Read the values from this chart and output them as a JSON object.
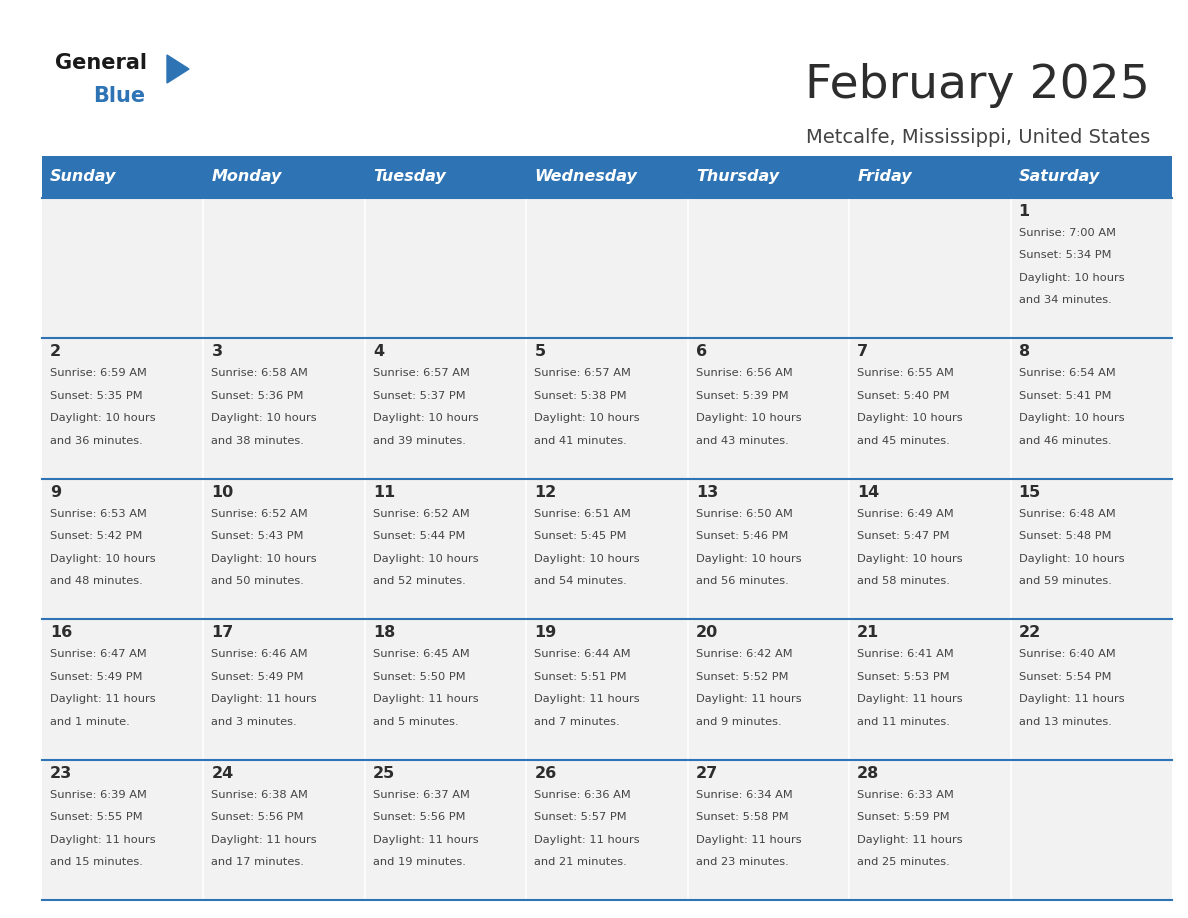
{
  "title": "February 2025",
  "subtitle": "Metcalfe, Mississippi, United States",
  "days_of_week": [
    "Sunday",
    "Monday",
    "Tuesday",
    "Wednesday",
    "Thursday",
    "Friday",
    "Saturday"
  ],
  "header_bg": "#2e74b5",
  "header_text": "#ffffff",
  "row_bg": "#f2f2f2",
  "cell_border_color": "#2e74b5",
  "title_color": "#2d2d2d",
  "subtitle_color": "#444444",
  "day_num_color": "#2d2d2d",
  "info_color": "#444444",
  "logo_general_color": "#1a1a1a",
  "logo_blue_color": "#2e74b5",
  "calendar": [
    [
      null,
      null,
      null,
      null,
      null,
      null,
      {
        "day": "1",
        "sunrise": "7:00 AM",
        "sunset": "5:34 PM",
        "daylight_h": "10 hours",
        "daylight_m": "and 34 minutes."
      }
    ],
    [
      {
        "day": "2",
        "sunrise": "6:59 AM",
        "sunset": "5:35 PM",
        "daylight_h": "10 hours",
        "daylight_m": "and 36 minutes."
      },
      {
        "day": "3",
        "sunrise": "6:58 AM",
        "sunset": "5:36 PM",
        "daylight_h": "10 hours",
        "daylight_m": "and 38 minutes."
      },
      {
        "day": "4",
        "sunrise": "6:57 AM",
        "sunset": "5:37 PM",
        "daylight_h": "10 hours",
        "daylight_m": "and 39 minutes."
      },
      {
        "day": "5",
        "sunrise": "6:57 AM",
        "sunset": "5:38 PM",
        "daylight_h": "10 hours",
        "daylight_m": "and 41 minutes."
      },
      {
        "day": "6",
        "sunrise": "6:56 AM",
        "sunset": "5:39 PM",
        "daylight_h": "10 hours",
        "daylight_m": "and 43 minutes."
      },
      {
        "day": "7",
        "sunrise": "6:55 AM",
        "sunset": "5:40 PM",
        "daylight_h": "10 hours",
        "daylight_m": "and 45 minutes."
      },
      {
        "day": "8",
        "sunrise": "6:54 AM",
        "sunset": "5:41 PM",
        "daylight_h": "10 hours",
        "daylight_m": "and 46 minutes."
      }
    ],
    [
      {
        "day": "9",
        "sunrise": "6:53 AM",
        "sunset": "5:42 PM",
        "daylight_h": "10 hours",
        "daylight_m": "and 48 minutes."
      },
      {
        "day": "10",
        "sunrise": "6:52 AM",
        "sunset": "5:43 PM",
        "daylight_h": "10 hours",
        "daylight_m": "and 50 minutes."
      },
      {
        "day": "11",
        "sunrise": "6:52 AM",
        "sunset": "5:44 PM",
        "daylight_h": "10 hours",
        "daylight_m": "and 52 minutes."
      },
      {
        "day": "12",
        "sunrise": "6:51 AM",
        "sunset": "5:45 PM",
        "daylight_h": "10 hours",
        "daylight_m": "and 54 minutes."
      },
      {
        "day": "13",
        "sunrise": "6:50 AM",
        "sunset": "5:46 PM",
        "daylight_h": "10 hours",
        "daylight_m": "and 56 minutes."
      },
      {
        "day": "14",
        "sunrise": "6:49 AM",
        "sunset": "5:47 PM",
        "daylight_h": "10 hours",
        "daylight_m": "and 58 minutes."
      },
      {
        "day": "15",
        "sunrise": "6:48 AM",
        "sunset": "5:48 PM",
        "daylight_h": "10 hours",
        "daylight_m": "and 59 minutes."
      }
    ],
    [
      {
        "day": "16",
        "sunrise": "6:47 AM",
        "sunset": "5:49 PM",
        "daylight_h": "11 hours",
        "daylight_m": "and 1 minute."
      },
      {
        "day": "17",
        "sunrise": "6:46 AM",
        "sunset": "5:49 PM",
        "daylight_h": "11 hours",
        "daylight_m": "and 3 minutes."
      },
      {
        "day": "18",
        "sunrise": "6:45 AM",
        "sunset": "5:50 PM",
        "daylight_h": "11 hours",
        "daylight_m": "and 5 minutes."
      },
      {
        "day": "19",
        "sunrise": "6:44 AM",
        "sunset": "5:51 PM",
        "daylight_h": "11 hours",
        "daylight_m": "and 7 minutes."
      },
      {
        "day": "20",
        "sunrise": "6:42 AM",
        "sunset": "5:52 PM",
        "daylight_h": "11 hours",
        "daylight_m": "and 9 minutes."
      },
      {
        "day": "21",
        "sunrise": "6:41 AM",
        "sunset": "5:53 PM",
        "daylight_h": "11 hours",
        "daylight_m": "and 11 minutes."
      },
      {
        "day": "22",
        "sunrise": "6:40 AM",
        "sunset": "5:54 PM",
        "daylight_h": "11 hours",
        "daylight_m": "and 13 minutes."
      }
    ],
    [
      {
        "day": "23",
        "sunrise": "6:39 AM",
        "sunset": "5:55 PM",
        "daylight_h": "11 hours",
        "daylight_m": "and 15 minutes."
      },
      {
        "day": "24",
        "sunrise": "6:38 AM",
        "sunset": "5:56 PM",
        "daylight_h": "11 hours",
        "daylight_m": "and 17 minutes."
      },
      {
        "day": "25",
        "sunrise": "6:37 AM",
        "sunset": "5:56 PM",
        "daylight_h": "11 hours",
        "daylight_m": "and 19 minutes."
      },
      {
        "day": "26",
        "sunrise": "6:36 AM",
        "sunset": "5:57 PM",
        "daylight_h": "11 hours",
        "daylight_m": "and 21 minutes."
      },
      {
        "day": "27",
        "sunrise": "6:34 AM",
        "sunset": "5:58 PM",
        "daylight_h": "11 hours",
        "daylight_m": "and 23 minutes."
      },
      {
        "day": "28",
        "sunrise": "6:33 AM",
        "sunset": "5:59 PM",
        "daylight_h": "11 hours",
        "daylight_m": "and 25 minutes."
      },
      null
    ]
  ]
}
